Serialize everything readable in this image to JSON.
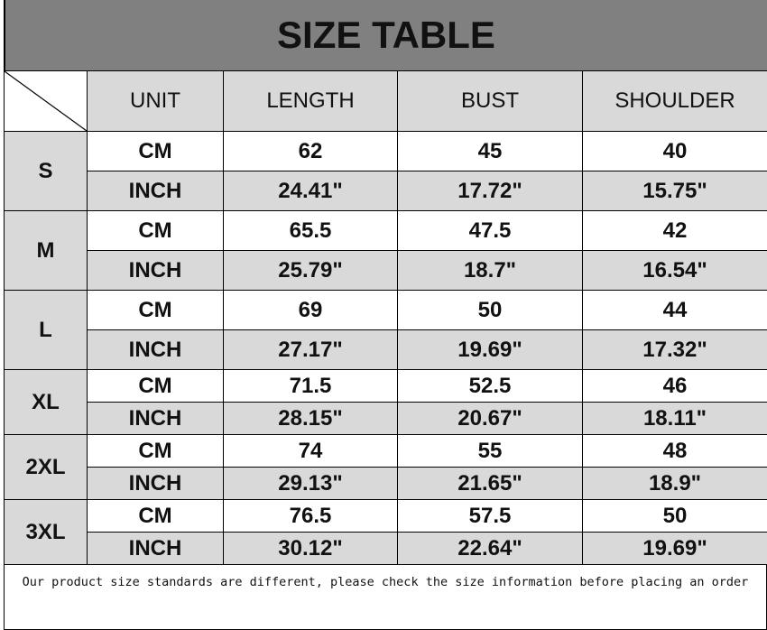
{
  "title": "SIZE TABLE",
  "headers": [
    "UNIT",
    "LENGTH",
    "BUST",
    "SHOULDER"
  ],
  "units": {
    "cm": "CM",
    "inch": "INCH"
  },
  "sizes": [
    {
      "size": "S",
      "cm": [
        "62",
        "45",
        "40"
      ],
      "inch": [
        "24.41\"",
        "17.72\"",
        "15.75\""
      ]
    },
    {
      "size": "M",
      "cm": [
        "65.5",
        "47.5",
        "42"
      ],
      "inch": [
        "25.79\"",
        "18.7\"",
        "16.54\""
      ]
    },
    {
      "size": "L",
      "cm": [
        "69",
        "50",
        "44"
      ],
      "inch": [
        "27.17\"",
        "19.69\"",
        "17.32\""
      ]
    },
    {
      "size": "XL",
      "cm": [
        "71.5",
        "52.5",
        "46"
      ],
      "inch": [
        "28.15\"",
        "20.67\"",
        "18.11\""
      ]
    },
    {
      "size": "2XL",
      "cm": [
        "74",
        "55",
        "48"
      ],
      "inch": [
        "29.13\"",
        "21.65\"",
        "18.9\""
      ]
    },
    {
      "size": "3XL",
      "cm": [
        "76.5",
        "57.5",
        "50"
      ],
      "inch": [
        "30.12\"",
        "22.64\"",
        "19.69\""
      ]
    }
  ],
  "footer": "Our product size standards are different, please check the size information before placing an order",
  "colors": {
    "title_bg": "#808080",
    "cell_gray": "#d9d9d9"
  }
}
